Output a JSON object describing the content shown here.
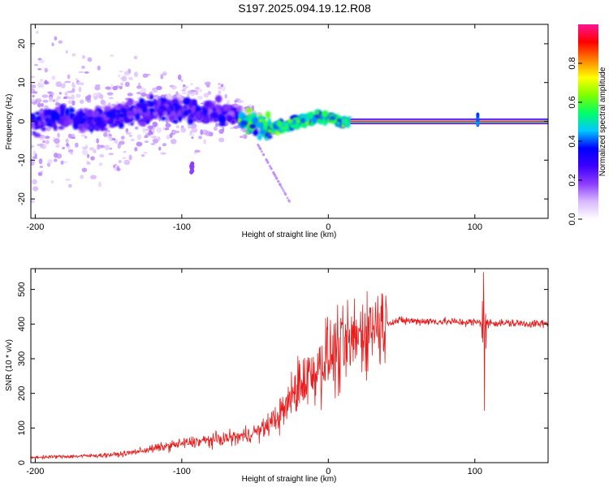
{
  "title": "S197.2025.094.19.12.R08",
  "chart_data": [
    {
      "type": "heatmap",
      "xlabel": "Height of straight line (km)",
      "ylabel": "Frequency (Hz)",
      "xlim": [
        -203,
        150
      ],
      "ylim": [
        -25,
        25
      ],
      "xticks": [
        -200,
        -100,
        0,
        100
      ],
      "yticks": [
        -20,
        -10,
        0,
        10,
        20
      ],
      "grid": false,
      "colorbar": {
        "label": "Normalized spectral amplitude",
        "range": [
          0,
          1
        ],
        "ticks": [
          0.0,
          0.2,
          0.4,
          0.6,
          0.8
        ],
        "colors": [
          "#ffffff",
          "#d9b8ff",
          "#8c3cff",
          "#3d00ff",
          "#0000ff",
          "#00c8ff",
          "#00ff66",
          "#7fff00",
          "#ffff00",
          "#ff8000",
          "#ff0000",
          "#ff1493"
        ]
      },
      "ridge": {
        "x": [
          -200,
          -180,
          -160,
          -140,
          -120,
          -100,
          -90,
          -80,
          -70,
          -60,
          -50,
          -40,
          -30,
          -20,
          -10,
          0,
          10,
          20,
          150
        ],
        "y": [
          0,
          1,
          0,
          2,
          3,
          3,
          2,
          3,
          2,
          1,
          -1,
          -2,
          -1,
          0,
          1,
          1,
          0,
          0,
          0
        ]
      },
      "features": {
        "stable_line_from_x": 15,
        "stable_line_y": 0,
        "burst_x": 102,
        "dropout_x": -93,
        "dropout_y": -12
      }
    },
    {
      "type": "line",
      "xlabel": "Height of straight line (km)",
      "ylabel": "SNR (10 * v/v)",
      "xlim": [
        -203,
        150
      ],
      "ylim": [
        0,
        560
      ],
      "xticks": [
        -200,
        -100,
        0,
        100
      ],
      "yticks": [
        0,
        100,
        200,
        300,
        400,
        500
      ],
      "grid": false,
      "series": [
        {
          "color": "#e81c1c",
          "envelope_x": [
            -203,
            -160,
            -140,
            -120,
            -100,
            -80,
            -60,
            -45,
            -30,
            -20,
            -10,
            0,
            10,
            20,
            30,
            40,
            50,
            100,
            150
          ],
          "envelope_y": [
            15,
            20,
            25,
            40,
            55,
            65,
            75,
            95,
            150,
            230,
            260,
            310,
            320,
            365,
            395,
            405,
            410,
            405,
            400
          ],
          "spikes": [
            {
              "x": 106,
              "y": 550
            },
            {
              "x": 106.5,
              "y": 150
            }
          ]
        }
      ]
    }
  ]
}
